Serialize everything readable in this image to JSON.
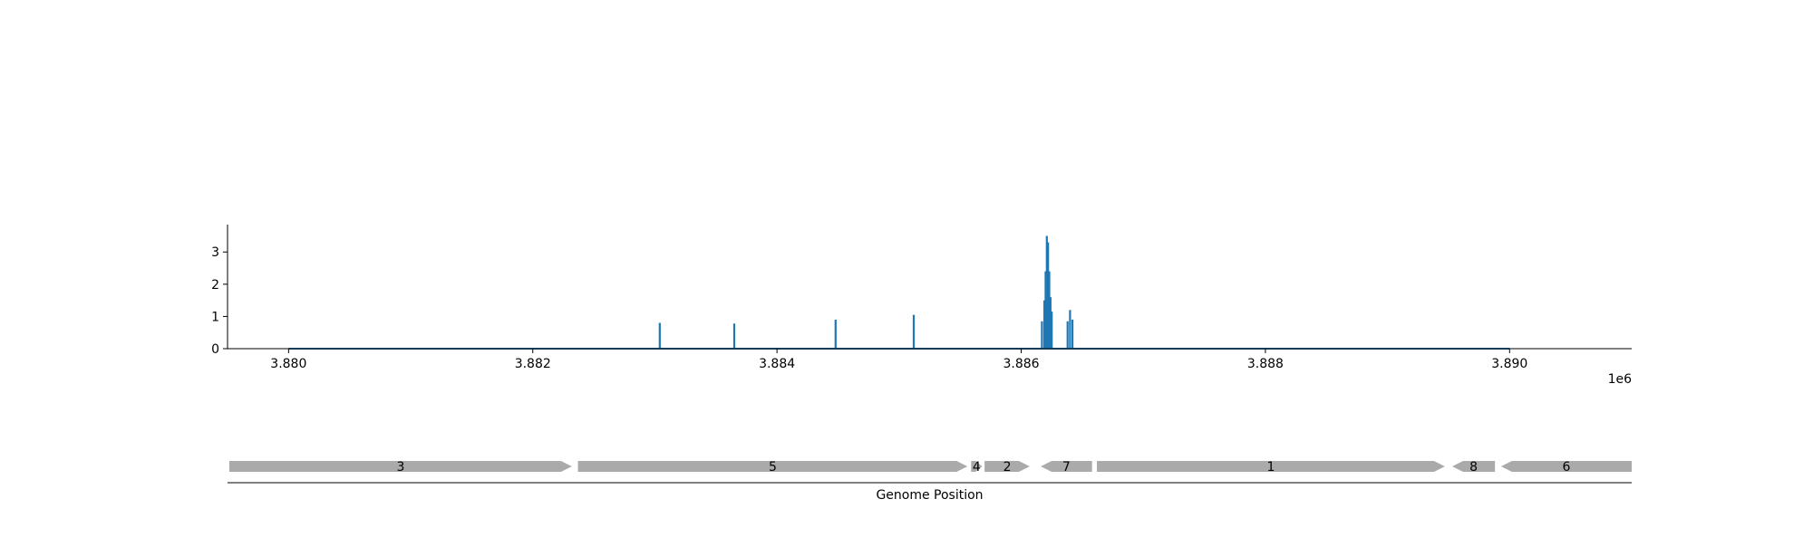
{
  "chart_data": [
    {
      "type": "line",
      "title": "",
      "xlabel": "",
      "ylabel": "",
      "x_offset_label": "1e6",
      "xlim": [
        3879500,
        3891000
      ],
      "ylim": [
        0,
        3.85
      ],
      "xticks": [
        3880000,
        3882000,
        3884000,
        3886000,
        3888000,
        3890000
      ],
      "xtick_labels": [
        "3.880",
        "3.882",
        "3.884",
        "3.886",
        "3.888",
        "3.890"
      ],
      "yticks": [
        0,
        1,
        2,
        3
      ],
      "ytick_labels": [
        "0",
        "1",
        "2",
        "3"
      ],
      "grid": false,
      "series": [
        {
          "color": "#1f77b4",
          "baseline": [
            3880000,
            3890000
          ],
          "peaks": [
            {
              "x": 3883040,
              "y": 0.8
            },
            {
              "x": 3883650,
              "y": 0.78
            },
            {
              "x": 3884480,
              "y": 0.9
            },
            {
              "x": 3885120,
              "y": 1.05
            },
            {
              "x": 3886170,
              "y": 0.85
            },
            {
              "x": 3886190,
              "y": 1.5
            },
            {
              "x": 3886200,
              "y": 2.4
            },
            {
              "x": 3886210,
              "y": 3.5
            },
            {
              "x": 3886220,
              "y": 3.3
            },
            {
              "x": 3886230,
              "y": 2.4
            },
            {
              "x": 3886240,
              "y": 1.6
            },
            {
              "x": 3886250,
              "y": 1.15
            },
            {
              "x": 3886380,
              "y": 0.85
            },
            {
              "x": 3886400,
              "y": 1.2
            },
            {
              "x": 3886420,
              "y": 0.9
            }
          ]
        }
      ]
    },
    {
      "type": "gene_track",
      "xlabel": "Genome Position",
      "feature_color": "#aaaaaa",
      "features": [
        {
          "label": "3",
          "start": 3879500,
          "end": 3882320,
          "strand": "+"
        },
        {
          "label": "5",
          "start": 3882370,
          "end": 3885560,
          "strand": "+"
        },
        {
          "label": "4",
          "start": 3885590,
          "end": 3885680,
          "strand": "+"
        },
        {
          "label": "2",
          "start": 3885700,
          "end": 3886070,
          "strand": "+"
        },
        {
          "label": "7",
          "start": 3886160,
          "end": 3886580,
          "strand": "-"
        },
        {
          "label": "1",
          "start": 3886620,
          "end": 3889470,
          "strand": "+"
        },
        {
          "label": "8",
          "start": 3889530,
          "end": 3889880,
          "strand": "-"
        },
        {
          "label": "6",
          "start": 3889930,
          "end": 3891000,
          "strand": "-"
        }
      ]
    }
  ]
}
